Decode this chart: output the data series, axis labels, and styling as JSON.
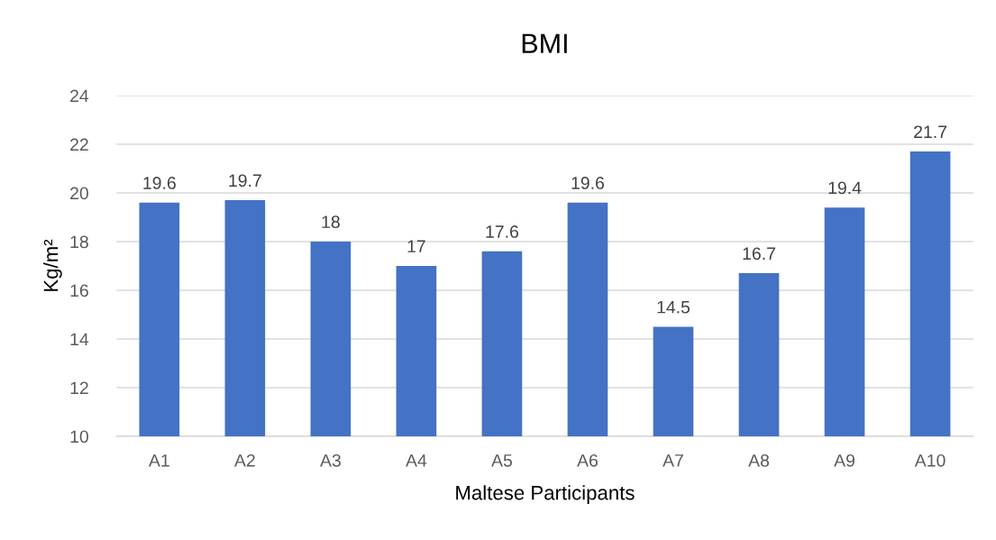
{
  "chart_data": {
    "type": "bar",
    "title": "BMI",
    "xlabel": "Maltese Participants",
    "ylabel": "Kg/m²",
    "categories": [
      "A1",
      "A2",
      "A3",
      "A4",
      "A5",
      "A6",
      "A7",
      "A8",
      "A9",
      "A10"
    ],
    "values": [
      19.6,
      19.7,
      18,
      17,
      17.6,
      19.6,
      14.5,
      16.7,
      19.4,
      21.7
    ],
    "color": "#4472c4",
    "ylim": [
      10,
      24
    ],
    "yticks": [
      10,
      12,
      14,
      16,
      18,
      20,
      22,
      24
    ],
    "grid": "y",
    "data_labels": true,
    "legend": false
  }
}
